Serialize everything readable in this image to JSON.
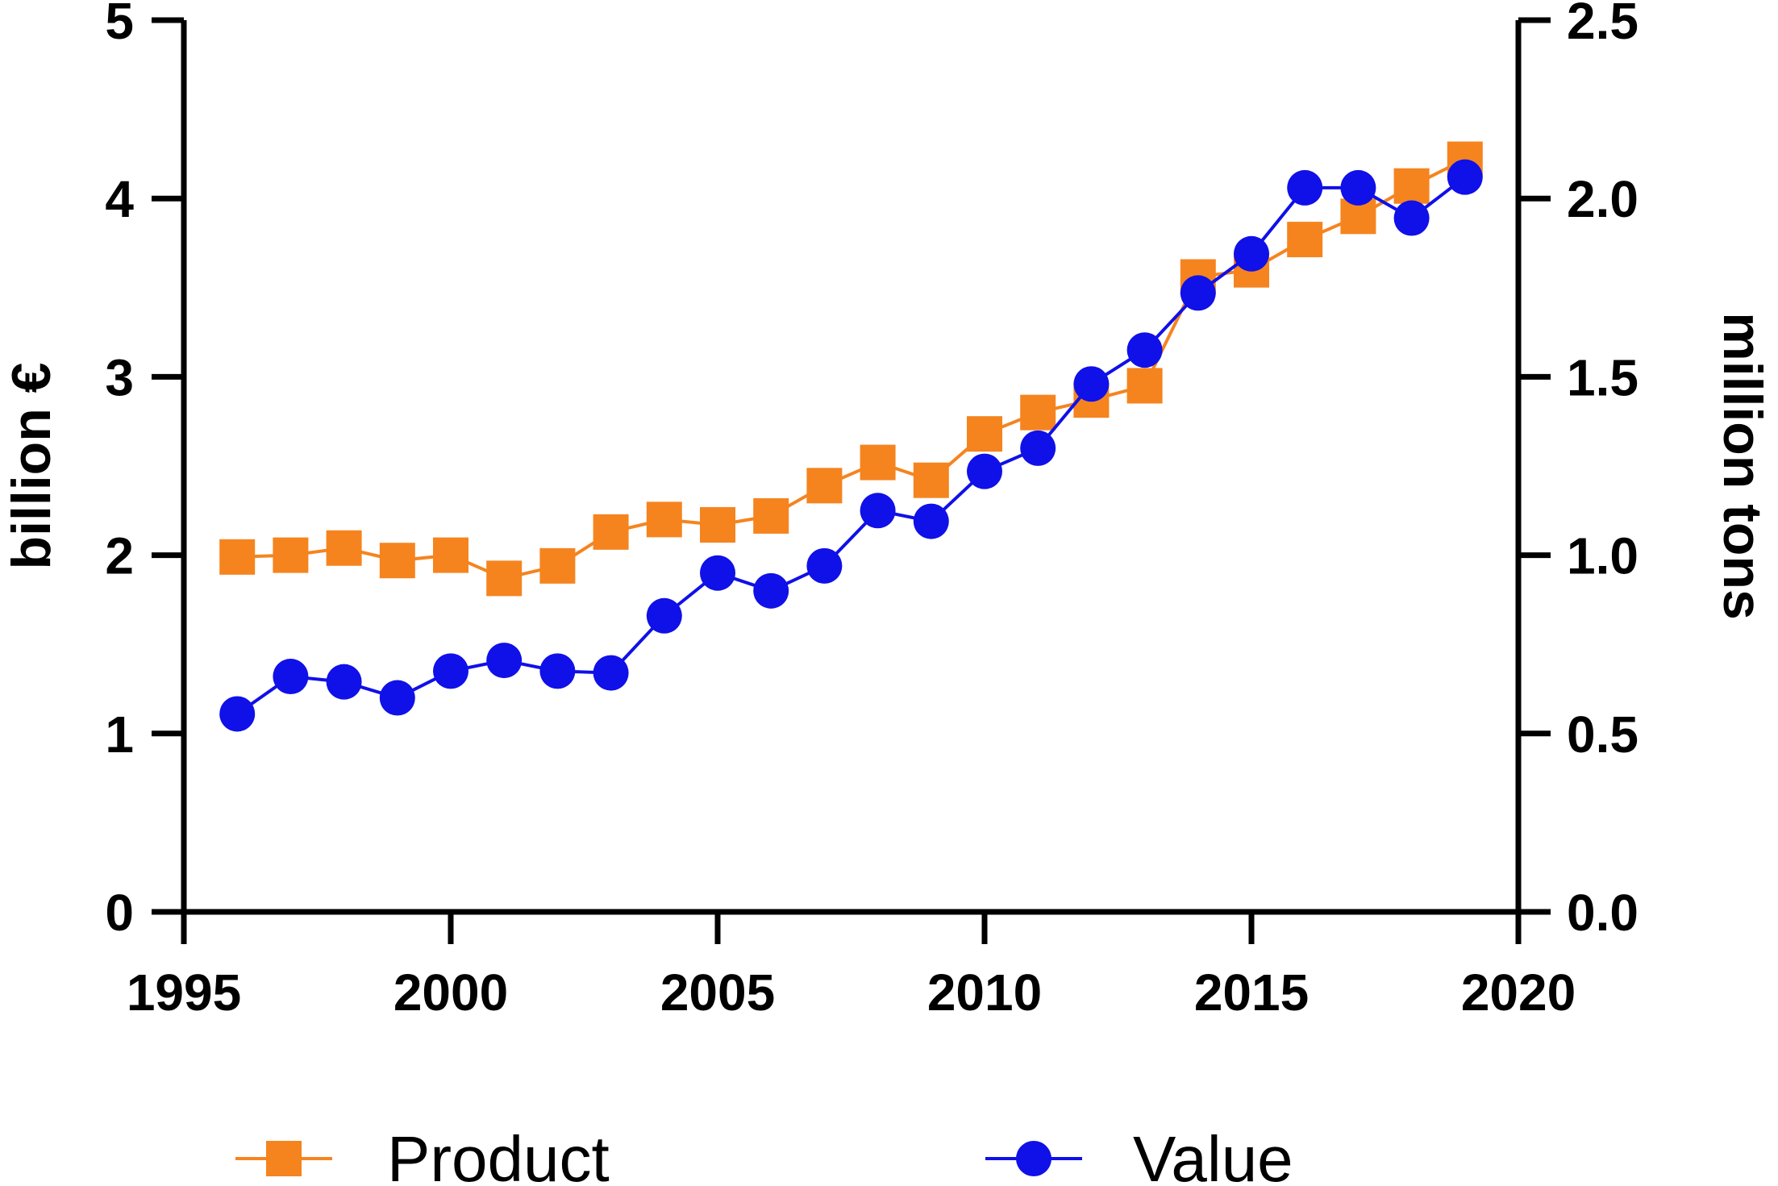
{
  "chart_data": {
    "type": "line",
    "title": "",
    "xlabel": "",
    "ylabel": "billion €",
    "y2label": "million tons",
    "xlim": [
      1995,
      2020
    ],
    "ylim": [
      0,
      5
    ],
    "y2lim": [
      0,
      2.5
    ],
    "x_ticks": [
      "1995",
      "2000",
      "2005",
      "2010",
      "2015",
      "2020"
    ],
    "y_ticks": [
      "0",
      "1",
      "2",
      "3",
      "4",
      "5"
    ],
    "y2_ticks": [
      "0.0",
      "0.5",
      "1.0",
      "1.5",
      "2.0",
      "2.5"
    ],
    "grid": false,
    "legend_position": "bottom",
    "x": [
      1996,
      1997,
      1998,
      1999,
      2000,
      2001,
      2002,
      2003,
      2004,
      2005,
      2006,
      2007,
      2008,
      2009,
      2010,
      2011,
      2012,
      2013,
      2014,
      2015,
      2016,
      2017,
      2018,
      2019
    ],
    "series": [
      {
        "name": "Product",
        "color": "#F5841F",
        "marker": "square",
        "axis": "left",
        "values": [
          1.99,
          2.0,
          2.04,
          1.97,
          2.0,
          1.87,
          1.94,
          2.13,
          2.2,
          2.17,
          2.22,
          2.39,
          2.52,
          2.42,
          2.68,
          2.8,
          2.87,
          2.95,
          3.56,
          3.6,
          3.77,
          3.9,
          4.07,
          4.22
        ]
      },
      {
        "name": "Value",
        "color": "#1010E8",
        "marker": "circle",
        "axis": "left",
        "values": [
          1.11,
          1.32,
          1.29,
          1.2,
          1.35,
          1.41,
          1.35,
          1.34,
          1.66,
          1.9,
          1.8,
          1.94,
          2.25,
          2.19,
          2.47,
          2.6,
          2.96,
          3.15,
          3.47,
          3.69,
          4.06,
          4.06,
          3.89,
          4.12
        ]
      }
    ]
  }
}
